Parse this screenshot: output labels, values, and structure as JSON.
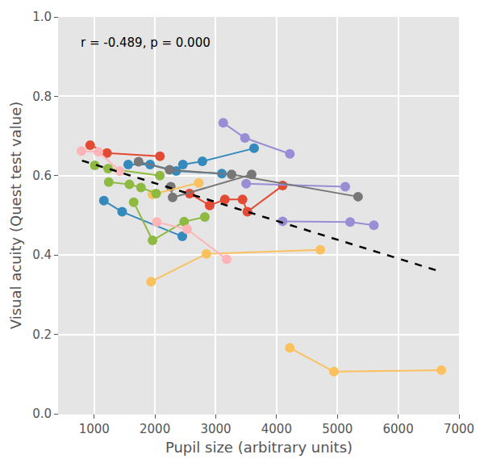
{
  "chart_data": {
    "type": "line",
    "x_label": "Pupil size (arbitrary units)",
    "y_label": "Visual acuity (Quest test value)",
    "annotations": [
      {
        "text": "r = -0.489, p = 0.000",
        "x": 750,
        "y": 0.935
      }
    ],
    "xlim": [
      420,
      7000
    ],
    "xticks": [
      1000,
      2000,
      3000,
      4000,
      5000,
      6000,
      7000
    ],
    "ylim": [
      0,
      1.0
    ],
    "yticks": [
      {
        "value": 0,
        "label": "0.0"
      },
      {
        "value": 0.2,
        "label": "0.2"
      },
      {
        "value": 0.4,
        "label": "0.4"
      },
      {
        "value": 0.6,
        "label": "0.6"
      },
      {
        "value": 0.8,
        "label": "0.8"
      },
      {
        "value": 1.0,
        "label": "1.0"
      }
    ],
    "grid": true,
    "marker": "circle",
    "series": [
      {
        "color": "#E24A33",
        "x": [
          934,
          1211,
          2082
        ],
        "values": [
          0.677,
          0.657,
          0.649
        ]
      },
      {
        "color": "#E24A33",
        "x": [
          2570,
          2900,
          3150,
          3440,
          3520,
          4100
        ],
        "values": [
          0.555,
          0.525,
          0.54,
          0.54,
          0.509,
          0.575
        ]
      },
      {
        "color": "#348ABD",
        "x": [
          1560,
          1920,
          2350,
          3100
        ],
        "values": [
          0.628,
          0.628,
          0.612,
          0.605
        ]
      },
      {
        "color": "#348ABD",
        "x": [
          2460,
          2780,
          3630
        ],
        "values": [
          0.628,
          0.636,
          0.669
        ]
      },
      {
        "color": "#348ABD",
        "x": [
          1160,
          1460,
          2450
        ],
        "values": [
          0.537,
          0.509,
          0.447
        ]
      },
      {
        "color": "#988ED5",
        "x": [
          3123,
          3480,
          4218
        ],
        "values": [
          0.733,
          0.695,
          0.655
        ]
      },
      {
        "color": "#988ED5",
        "x": [
          3500,
          5130
        ],
        "values": [
          0.58,
          0.572
        ]
      },
      {
        "color": "#988ED5",
        "x": [
          4100,
          5210,
          5600
        ],
        "values": [
          0.485,
          0.483,
          0.475
        ]
      },
      {
        "color": "#777777",
        "x": [
          1730,
          2240,
          3260,
          5340
        ],
        "values": [
          0.635,
          0.615,
          0.603,
          0.547
        ]
      },
      {
        "color": "#777777",
        "x": [
          2260,
          2290,
          3590
        ],
        "values": [
          0.572,
          0.545,
          0.603
        ]
      },
      {
        "color": "#FBC15E",
        "x": [
          1960,
          2720
        ],
        "values": [
          0.553,
          0.582
        ]
      },
      {
        "color": "#FBC15E",
        "x": [
          1936,
          2847,
          4720
        ],
        "values": [
          0.333,
          0.403,
          0.413
        ]
      },
      {
        "color": "#FBC15E",
        "x": [
          4218,
          4944,
          6710
        ],
        "values": [
          0.166,
          0.106,
          0.11
        ]
      },
      {
        "color": "#8EBA42",
        "x": [
          1010,
          1230,
          2080
        ],
        "values": [
          0.626,
          0.618,
          0.6
        ]
      },
      {
        "color": "#8EBA42",
        "x": [
          1240,
          1580,
          1770,
          2020
        ],
        "values": [
          0.584,
          0.578,
          0.57,
          0.555
        ]
      },
      {
        "color": "#8EBA42",
        "x": [
          1650,
          1960,
          2480,
          2820
        ],
        "values": [
          0.533,
          0.437,
          0.484,
          0.496
        ]
      },
      {
        "color": "#FFB5B8",
        "x": [
          790,
          1070,
          1420
        ],
        "values": [
          0.662,
          0.66,
          0.612
        ]
      },
      {
        "color": "#FFB5B8",
        "x": [
          2030,
          2530,
          3180
        ],
        "values": [
          0.483,
          0.465,
          0.389
        ]
      },
      {
        "color": "#000000",
        "x": [
          800,
          6700
        ],
        "values": [
          0.638,
          0.358
        ],
        "line_style": "dashed",
        "marker": "none"
      }
    ]
  }
}
